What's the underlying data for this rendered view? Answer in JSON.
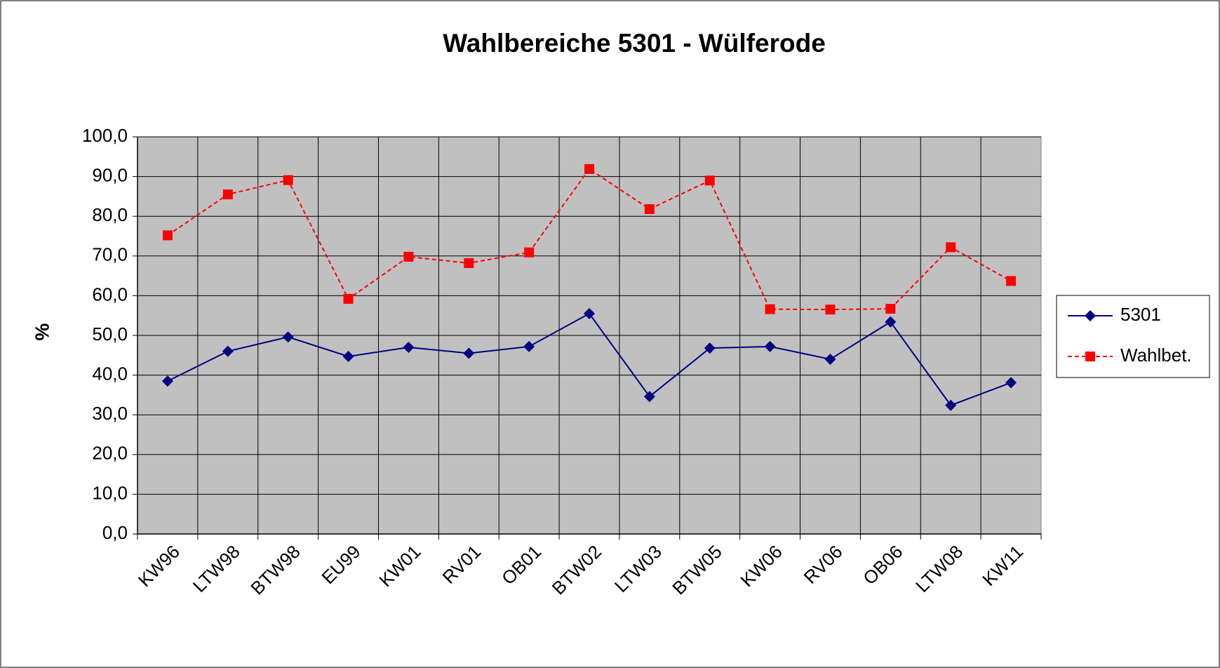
{
  "chart_data": {
    "type": "line",
    "title": "Wahlbereiche 5301 - Wülferode",
    "y_label": "%",
    "categories": [
      "KW96",
      "LTW98",
      "BTW98",
      "EU99",
      "KW01",
      "RV01",
      "OB01",
      "BTW02",
      "LTW03",
      "BTW05",
      "KW06",
      "RV06",
      "OB06",
      "LTW08",
      "KW11"
    ],
    "series": [
      {
        "name": "5301",
        "color": "#000080",
        "marker": "diamond",
        "dash": false,
        "values": [
          38.5,
          46.0,
          49.6,
          44.7,
          47.0,
          45.5,
          47.2,
          55.5,
          34.6,
          46.8,
          47.2,
          44.0,
          53.4,
          32.4,
          38.1
        ]
      },
      {
        "name": "Wahlbet.",
        "color": "#ff0000",
        "marker": "square",
        "dash": true,
        "values": [
          75.2,
          85.5,
          89.1,
          59.2,
          69.8,
          68.2,
          70.9,
          91.9,
          81.8,
          89.0,
          56.6,
          56.5,
          56.7,
          72.2,
          63.7
        ]
      }
    ],
    "ylim": [
      0,
      100
    ],
    "yticks": [
      {
        "value": 0,
        "label": "0,0"
      },
      {
        "value": 10,
        "label": "10,0"
      },
      {
        "value": 20,
        "label": "20,0"
      },
      {
        "value": 30,
        "label": "30,0"
      },
      {
        "value": 40,
        "label": "40,0"
      },
      {
        "value": 50,
        "label": "50,0"
      },
      {
        "value": 60,
        "label": "60,0"
      },
      {
        "value": 70,
        "label": "70,0"
      },
      {
        "value": 80,
        "label": "80,0"
      },
      {
        "value": 90,
        "label": "90,0"
      },
      {
        "value": 100,
        "label": "100,0"
      }
    ],
    "grid": true,
    "legend": "right",
    "plot_background": "#c0c0c0"
  }
}
